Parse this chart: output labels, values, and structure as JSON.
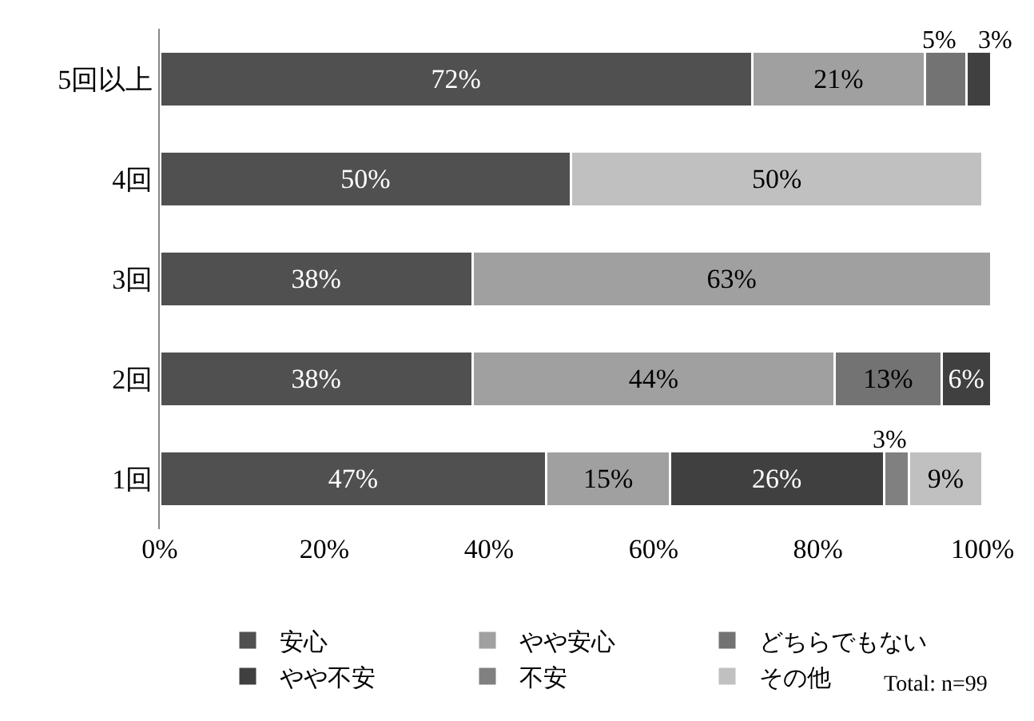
{
  "chart_data": {
    "type": "bar",
    "orientation": "horizontal",
    "stacked": true,
    "categories": [
      "5回以上",
      "4回",
      "3回",
      "2回",
      "1回"
    ],
    "series": [
      {
        "name": "安心",
        "color": "#505050",
        "values": [
          72,
          50,
          38,
          38,
          47
        ],
        "value_labels": [
          "72%",
          "50%",
          "38%",
          "38%",
          "47%"
        ]
      },
      {
        "name": "やや安心",
        "color": "#a0a0a0",
        "values": [
          21,
          null,
          63,
          44,
          15
        ],
        "value_labels": [
          "21%",
          null,
          "63%",
          "44%",
          "15%"
        ]
      },
      {
        "name": "どちらでもない",
        "color": "#737373",
        "values": [
          5,
          null,
          null,
          13,
          null
        ],
        "value_labels": [
          "5%",
          null,
          null,
          "13%",
          null
        ]
      },
      {
        "name": "やや不安",
        "color": "#404040",
        "values": [
          3,
          null,
          null,
          6,
          26
        ],
        "value_labels": [
          "3%",
          null,
          null,
          "6%",
          "26%"
        ]
      },
      {
        "name": "不安",
        "color": "#808080",
        "values": [
          null,
          null,
          null,
          null,
          3
        ],
        "value_labels": [
          null,
          null,
          null,
          null,
          "3%"
        ]
      },
      {
        "name": "その他",
        "color": "#c0c0c0",
        "values": [
          null,
          50,
          null,
          null,
          9
        ],
        "value_labels": [
          null,
          "50%",
          null,
          null,
          "9%"
        ]
      }
    ],
    "xlim": [
      0,
      101
    ],
    "xticks": [
      {
        "value": 0,
        "label": "0%"
      },
      {
        "value": 20,
        "label": "20%"
      },
      {
        "value": 40,
        "label": "40%"
      },
      {
        "value": 60,
        "label": "60%"
      },
      {
        "value": 80,
        "label": "80%"
      },
      {
        "value": 100,
        "label": "100%"
      }
    ],
    "legend": "bottom",
    "annotations": [
      "Total: n=99"
    ]
  }
}
